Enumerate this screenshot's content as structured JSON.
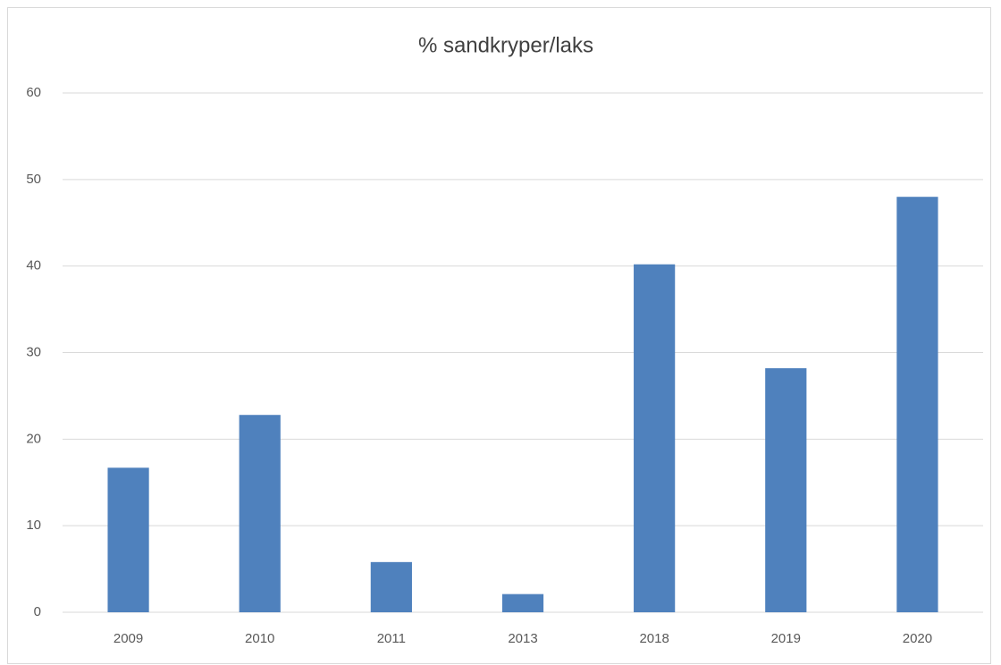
{
  "chart_data": {
    "type": "bar",
    "title": "% sandkryper/laks",
    "categories": [
      "2009",
      "2010",
      "2011",
      "2013",
      "2018",
      "2019",
      "2020"
    ],
    "values": [
      16.7,
      22.8,
      5.8,
      2.1,
      40.2,
      28.2,
      48.0
    ],
    "color": "#4f81bd",
    "ylim": [
      0,
      60
    ],
    "yticks": [
      0,
      10,
      20,
      30,
      40,
      50,
      60
    ],
    "grid": true
  }
}
